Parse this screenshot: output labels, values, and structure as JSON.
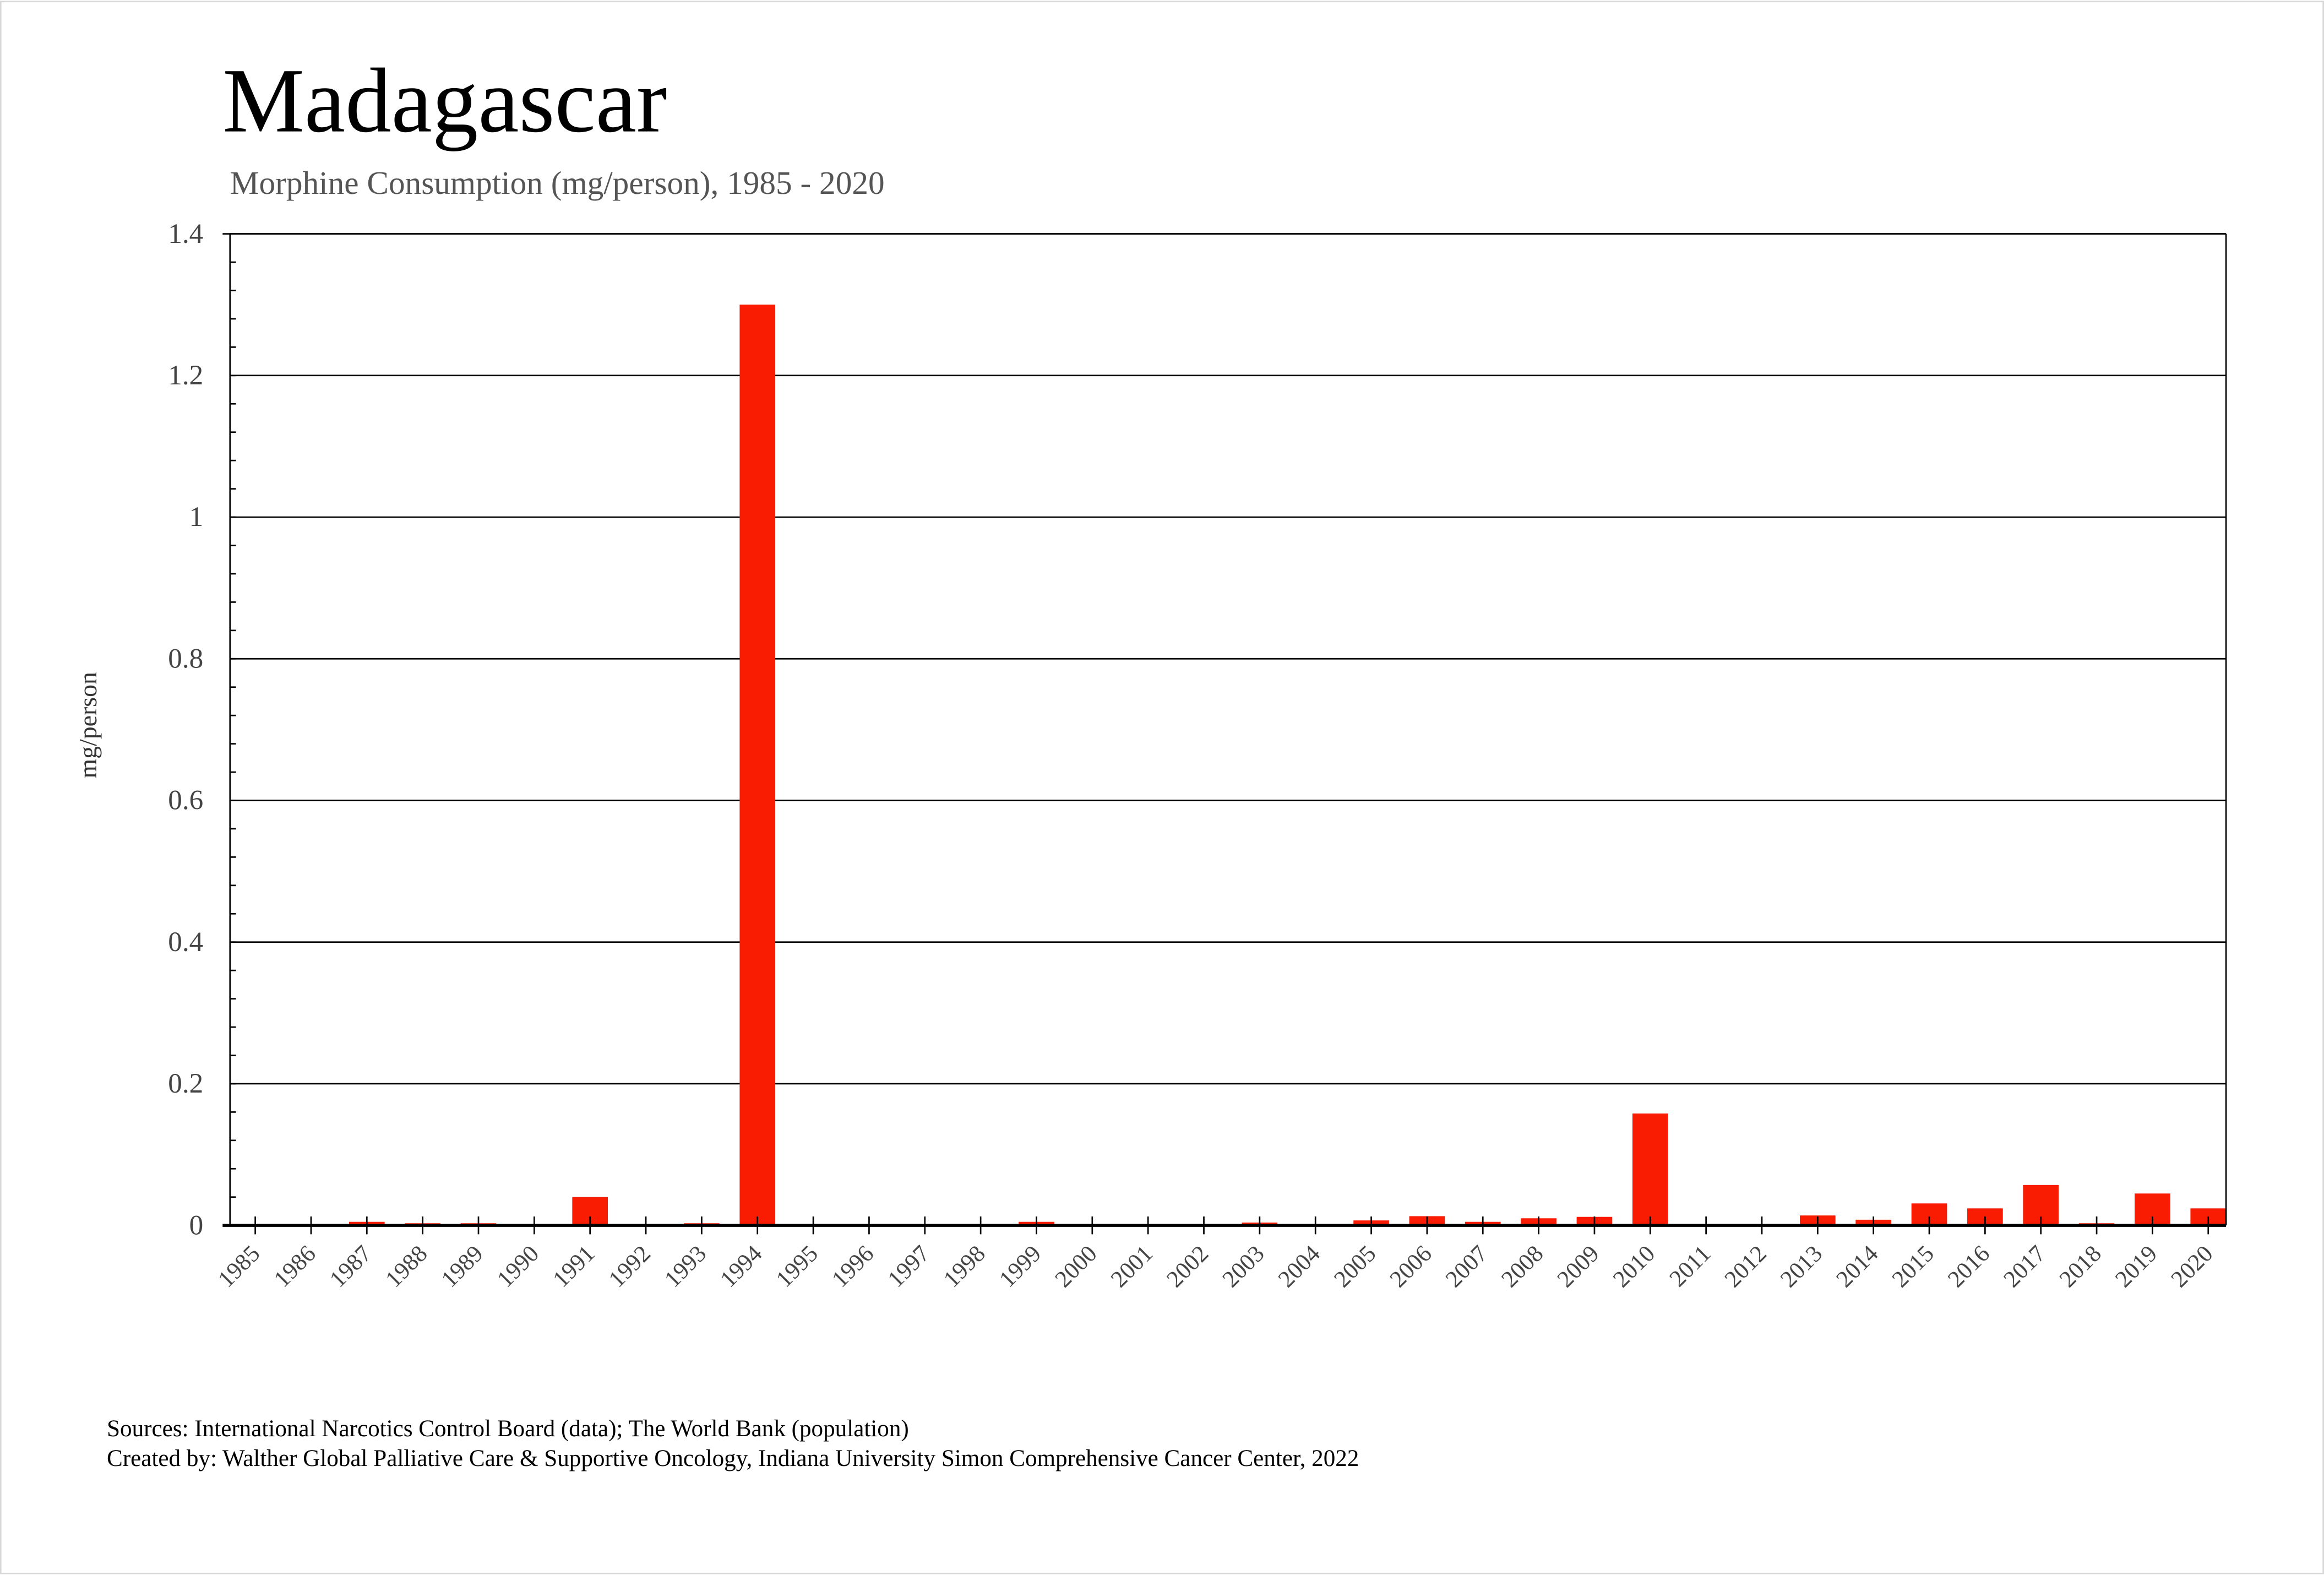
{
  "title": "Madagascar",
  "subtitle": "Morphine Consumption (mg/person), 1985 - 2020",
  "footer": {
    "sources": "Sources: International Narcotics Control Board (data); The World Bank (population)",
    "created": "Created by: Walther  Global Palliative Care & Supportive Oncology, Indiana University Simon Comprehensive Cancer Center, 2022"
  },
  "colors": {
    "bar": "#f91b02",
    "grid": "#000000",
    "text": "#555555"
  },
  "chart_data": {
    "type": "bar",
    "title": "Madagascar",
    "subtitle": "Morphine Consumption (mg/person), 1985 - 2020",
    "xlabel": "",
    "ylabel": "mg/person",
    "ylim": [
      0,
      1.4
    ],
    "yticks": [
      0,
      0.2,
      0.4,
      0.6,
      0.8,
      1,
      1.2,
      1.4
    ],
    "ytick_labels": [
      "0",
      "0.2",
      "0.4",
      "0.6",
      "0.8",
      "1",
      "1.2",
      "1.4"
    ],
    "grid": true,
    "categories": [
      "1985",
      "1986",
      "1987",
      "1988",
      "1989",
      "1990",
      "1991",
      "1992",
      "1993",
      "1994",
      "1995",
      "1996",
      "1997",
      "1998",
      "1999",
      "2000",
      "2001",
      "2002",
      "2003",
      "2004",
      "2005",
      "2006",
      "2007",
      "2008",
      "2009",
      "2010",
      "2011",
      "2012",
      "2013",
      "2014",
      "2015",
      "2016",
      "2017",
      "2018",
      "2019",
      "2020"
    ],
    "values": [
      0,
      0.002,
      0.005,
      0.003,
      0.003,
      0,
      0.04,
      0,
      0.003,
      1.3,
      0,
      0,
      0,
      0,
      0.005,
      0,
      0,
      0,
      0.004,
      0,
      0.007,
      0.013,
      0.005,
      0.01,
      0.012,
      0.158,
      0,
      0,
      0.014,
      0.008,
      0.031,
      0.024,
      0.057,
      0.003,
      0.045,
      0.024
    ]
  }
}
